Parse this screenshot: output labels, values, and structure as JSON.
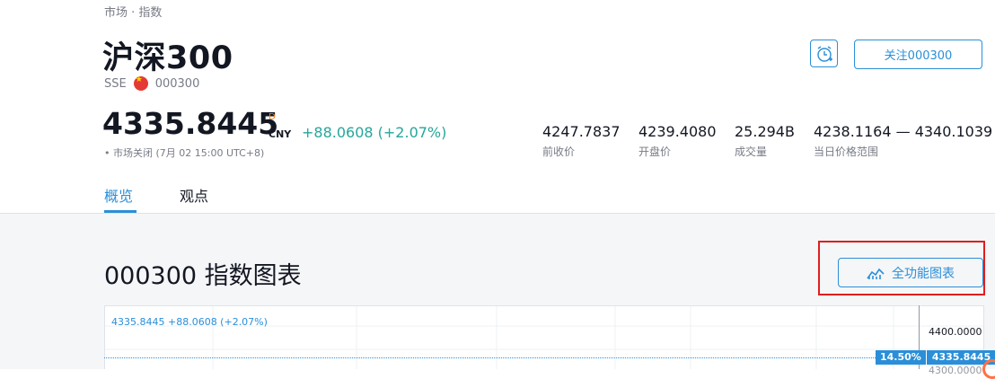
{
  "breadcrumb": "市场 · 指数",
  "symbol": {
    "name": "沪深300",
    "exchange": "SSE",
    "code": "000300",
    "flag_icon": "china-flag-icon"
  },
  "actions": {
    "alarm_icon": "alarm-clock-plus-icon",
    "follow_label": "关注000300"
  },
  "quote": {
    "price": "4335.8445",
    "superscript": "D",
    "currency": "CNY",
    "change": "+88.0608 (+2.07%)",
    "market_status": "• 市场关闭 (7月 02 15:00 UTC+8)"
  },
  "stats": [
    {
      "value": "4247.7837",
      "label": "前收价"
    },
    {
      "value": "4239.4080",
      "label": "开盘价"
    },
    {
      "value": "25.294B",
      "label": "成交量"
    },
    {
      "value": "4238.1164 — 4340.1039",
      "label": "当日价格范围"
    }
  ],
  "tabs": [
    {
      "label": "概览",
      "active": true
    },
    {
      "label": "观点",
      "active": false
    }
  ],
  "section": {
    "title": "000300 指数图表",
    "full_chart_label": "全功能图表",
    "full_chart_icon": "chart-line-icon"
  },
  "chart": {
    "legend": "4335.8445 +88.0608 (+2.07%)",
    "axis_top": "4400.0000",
    "tag_percent": "14.50%",
    "tag_value": "4335.8445",
    "axis_low": "4300.0000"
  },
  "colors": {
    "accent": "#2a8fd8",
    "positive": "#26a69a",
    "highlight": "#e01e1e"
  }
}
